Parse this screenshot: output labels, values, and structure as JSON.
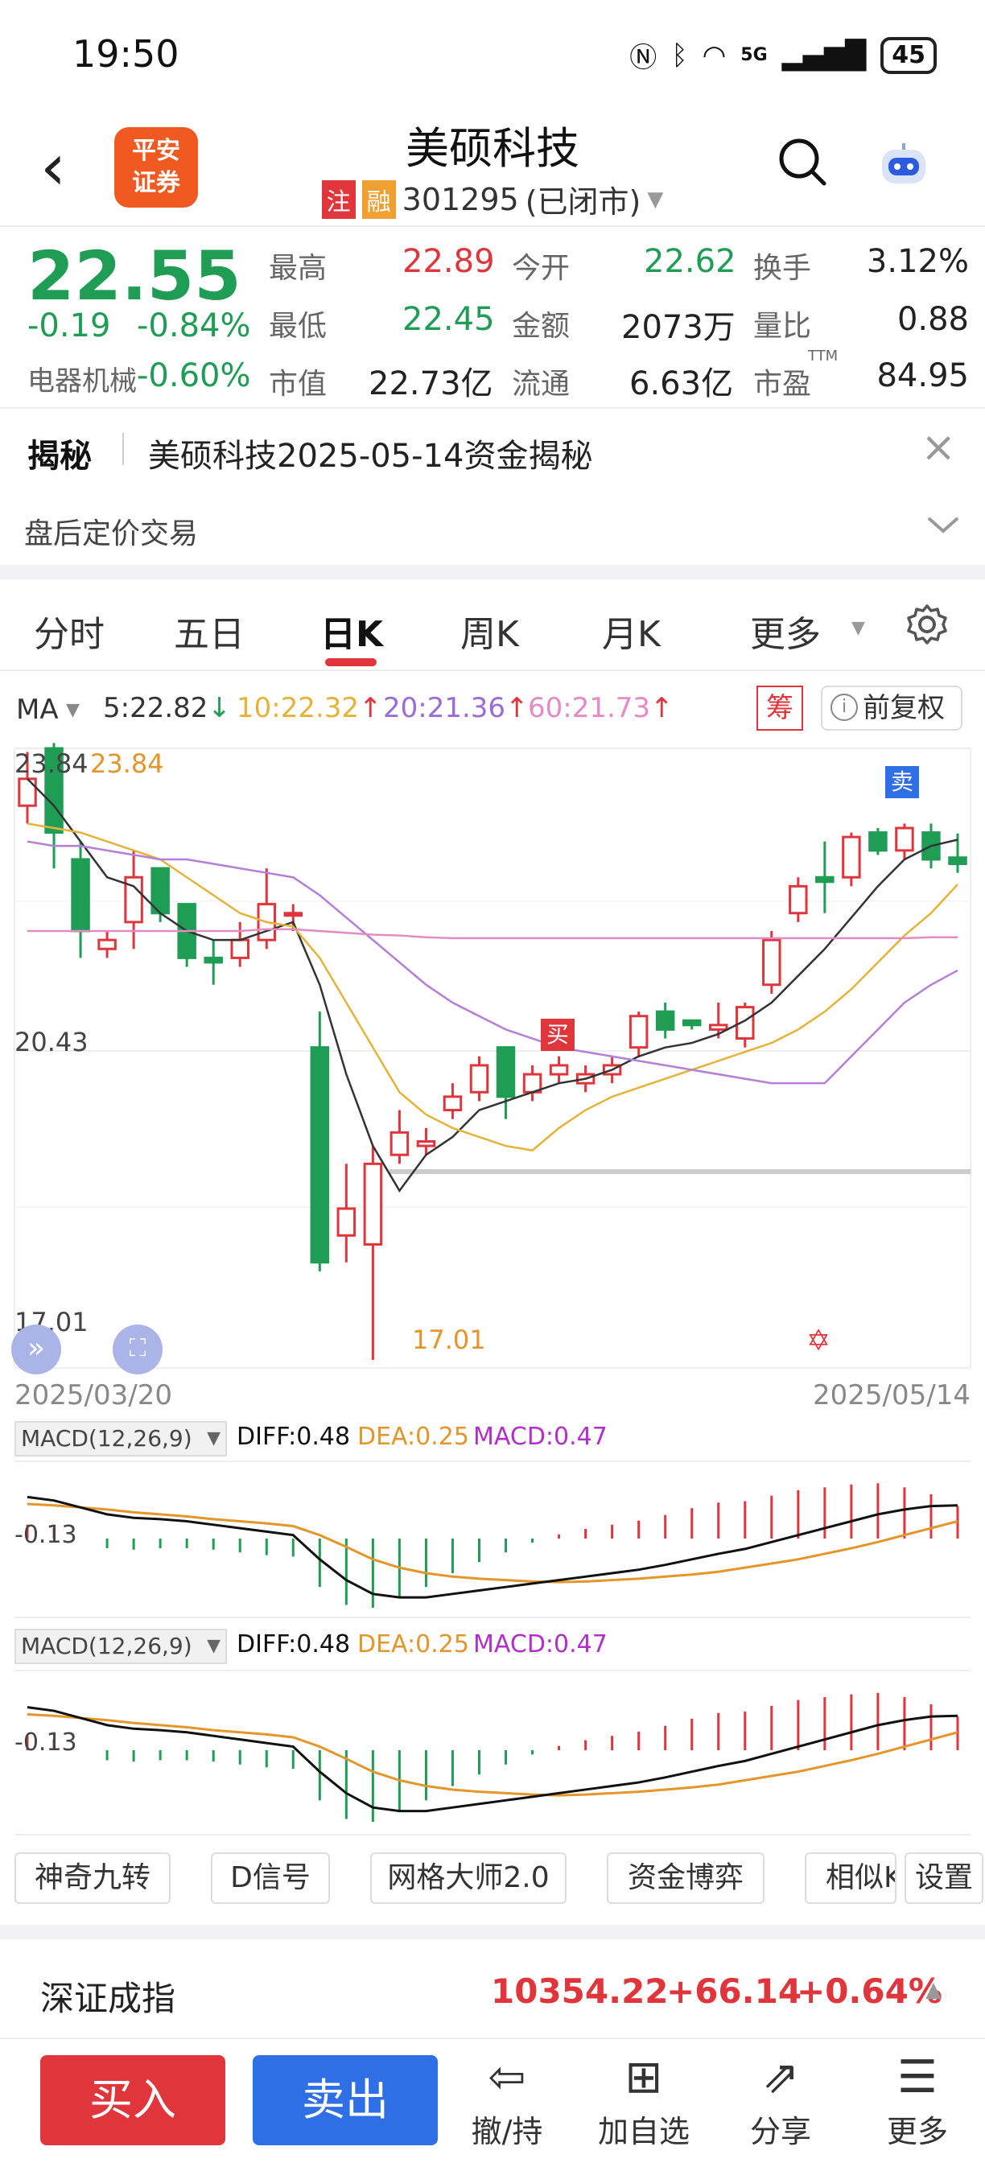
{
  "status": {
    "time": "19:50",
    "network": "5G",
    "battery": "45"
  },
  "header": {
    "title": "美硕科技",
    "logo_line1": "平安",
    "logo_line2": "证券",
    "badge1": "注",
    "badge2": "融",
    "code": "301295",
    "market_status": "(已闭市)"
  },
  "quote": {
    "price": "22.55",
    "change": "-0.19",
    "change_pct": "-0.84%",
    "sector": "电器机械",
    "sector_pct": "-0.60%",
    "high_label": "最高",
    "high": "22.89",
    "open_label": "今开",
    "open": "22.62",
    "turnover_label": "换手",
    "turnover": "3.12%",
    "low_label": "最低",
    "low": "22.45",
    "amount_label": "金额",
    "amount": "2073万",
    "vol_ratio_label": "量比",
    "vol_ratio": "0.88",
    "mcap_label": "市值",
    "mcap": "22.73亿",
    "float_label": "流通",
    "float": "6.63亿",
    "pe_label": "市盈",
    "pe_sup": "TTM",
    "pe": "84.95"
  },
  "notice": {
    "tag": "揭秘",
    "text": "美硕科技2025-05-14资金揭秘",
    "after_hours": "盘后定价交易"
  },
  "tabs": [
    "分时",
    "五日",
    "日K",
    "周K",
    "月K",
    "更多"
  ],
  "active_tab": "日K",
  "ma": {
    "label": "MA",
    "ma5": "5:22.82",
    "ma10": "10:22.32",
    "ma20": "20:21.36",
    "ma60": "60:21.73",
    "chip_label": "筹",
    "adjust_label": "前复权"
  },
  "kline": {
    "y_top_label": "23.84",
    "y_top_label2": "23.84",
    "y_mid_label": "20.43",
    "y_low_label": "17.01",
    "min_marker": "17.01",
    "buy_marker": "买",
    "sell_marker": "卖",
    "date_start": "2025/03/20",
    "date_end": "2025/05/14"
  },
  "macd1": {
    "label": "MACD(12,26,9)",
    "diff": "DIFF:0.48",
    "dea": "DEA:0.25",
    "macd": "MACD:0.47",
    "y_label": "-0.13"
  },
  "macd2": {
    "label": "MACD(12,26,9)",
    "diff": "DIFF:0.48",
    "dea": "DEA:0.25",
    "macd": "MACD:0.47",
    "y_label": "-0.13"
  },
  "tools": [
    "神奇九转",
    "D信号",
    "网格大师2.0",
    "资金博弈",
    "相似K",
    "设置"
  ],
  "index": {
    "name": "深证成指",
    "value": "10354.22",
    "change": "+66.14",
    "pct": "+0.64%"
  },
  "bottom": {
    "buy": "买入",
    "sell": "卖出",
    "hold": "撤/持",
    "watch": "加自选",
    "share": "分享",
    "more": "更多"
  },
  "colors": {
    "up": "#e0353b",
    "down": "#1f9d55",
    "ma5": "#333333",
    "ma10": "#e5b33a",
    "ma20": "#b57fd9",
    "ma60": "#e58bc3",
    "sell_btn": "#2f6fe6"
  },
  "chart_data": [
    {
      "type": "candlestick",
      "title": "",
      "x_range": [
        "2025/03/20",
        "2025/05/14"
      ],
      "ylim": [
        17.01,
        23.84
      ],
      "y_ticks": [
        23.84,
        20.43,
        17.01
      ],
      "ohlc": [
        {
          "o": 23.2,
          "h": 23.8,
          "l": 23.0,
          "c": 23.5
        },
        {
          "o": 23.84,
          "h": 23.9,
          "l": 22.5,
          "c": 22.9
        },
        {
          "o": 22.6,
          "h": 22.8,
          "l": 21.5,
          "c": 21.8
        },
        {
          "o": 21.6,
          "h": 21.8,
          "l": 21.5,
          "c": 21.7
        },
        {
          "o": 21.9,
          "h": 22.7,
          "l": 21.6,
          "c": 22.4
        },
        {
          "o": 22.5,
          "h": 22.5,
          "l": 21.9,
          "c": 22.0
        },
        {
          "o": 22.1,
          "h": 22.1,
          "l": 21.4,
          "c": 21.5
        },
        {
          "o": 21.5,
          "h": 21.7,
          "l": 21.2,
          "c": 21.45
        },
        {
          "o": 21.5,
          "h": 21.9,
          "l": 21.4,
          "c": 21.7
        },
        {
          "o": 21.7,
          "h": 22.5,
          "l": 21.6,
          "c": 22.1
        },
        {
          "o": 22.0,
          "h": 22.1,
          "l": 21.8,
          "c": 22.0
        },
        {
          "o": 20.5,
          "h": 20.9,
          "l": 18.0,
          "c": 18.1
        },
        {
          "o": 18.4,
          "h": 19.2,
          "l": 18.1,
          "c": 18.7
        },
        {
          "o": 18.3,
          "h": 19.4,
          "l": 17.01,
          "c": 19.2
        },
        {
          "o": 19.3,
          "h": 19.8,
          "l": 19.2,
          "c": 19.55
        },
        {
          "o": 19.4,
          "h": 19.6,
          "l": 19.3,
          "c": 19.45
        },
        {
          "o": 19.8,
          "h": 20.1,
          "l": 19.7,
          "c": 19.95
        },
        {
          "o": 20.0,
          "h": 20.4,
          "l": 19.9,
          "c": 20.3
        },
        {
          "o": 20.5,
          "h": 20.5,
          "l": 19.7,
          "c": 19.95
        },
        {
          "o": 20.0,
          "h": 20.3,
          "l": 19.9,
          "c": 20.2
        },
        {
          "o": 20.2,
          "h": 20.4,
          "l": 20.1,
          "c": 20.3
        },
        {
          "o": 20.1,
          "h": 20.3,
          "l": 20.0,
          "c": 20.2
        },
        {
          "o": 20.2,
          "h": 20.4,
          "l": 20.1,
          "c": 20.3
        },
        {
          "o": 20.5,
          "h": 20.9,
          "l": 20.4,
          "c": 20.85
        },
        {
          "o": 20.9,
          "h": 21.0,
          "l": 20.6,
          "c": 20.7
        },
        {
          "o": 20.8,
          "h": 20.8,
          "l": 20.7,
          "c": 20.75
        },
        {
          "o": 20.7,
          "h": 21.0,
          "l": 20.6,
          "c": 20.75
        },
        {
          "o": 20.6,
          "h": 21.0,
          "l": 20.5,
          "c": 20.95
        },
        {
          "o": 21.2,
          "h": 21.8,
          "l": 21.1,
          "c": 21.7
        },
        {
          "o": 22.0,
          "h": 22.4,
          "l": 21.9,
          "c": 22.3
        },
        {
          "o": 22.4,
          "h": 22.8,
          "l": 22.0,
          "c": 22.35
        },
        {
          "o": 22.4,
          "h": 22.9,
          "l": 22.3,
          "c": 22.85
        },
        {
          "o": 22.9,
          "h": 22.95,
          "l": 22.65,
          "c": 22.7
        },
        {
          "o": 22.7,
          "h": 23.0,
          "l": 22.6,
          "c": 22.95
        },
        {
          "o": 22.9,
          "h": 23.0,
          "l": 22.5,
          "c": 22.6
        },
        {
          "o": 22.62,
          "h": 22.89,
          "l": 22.45,
          "c": 22.55
        }
      ],
      "series": [
        {
          "name": "MA5",
          "values": [
            23.5,
            23.2,
            22.8,
            22.4,
            22.3,
            22.0,
            21.8,
            21.7,
            21.7,
            21.8,
            21.9,
            21.2,
            20.2,
            19.4,
            18.9,
            19.3,
            19.5,
            19.8,
            19.9,
            20.0,
            20.1,
            20.15,
            20.25,
            20.4,
            20.5,
            20.55,
            20.65,
            20.8,
            21.0,
            21.3,
            21.6,
            21.95,
            22.3,
            22.6,
            22.75,
            22.82
          ]
        },
        {
          "name": "MA10",
          "values": [
            23.0,
            22.95,
            22.9,
            22.8,
            22.7,
            22.6,
            22.4,
            22.2,
            22.0,
            21.9,
            21.85,
            21.5,
            21.0,
            20.5,
            20.0,
            19.75,
            19.6,
            19.5,
            19.4,
            19.35,
            19.6,
            19.8,
            19.95,
            20.05,
            20.15,
            20.25,
            20.35,
            20.45,
            20.55,
            20.7,
            20.9,
            21.15,
            21.45,
            21.75,
            22.0,
            22.32
          ]
        },
        {
          "name": "MA20",
          "values": [
            22.8,
            22.75,
            22.75,
            22.7,
            22.65,
            22.6,
            22.6,
            22.55,
            22.5,
            22.45,
            22.4,
            22.2,
            21.95,
            21.7,
            21.45,
            21.2,
            21.0,
            20.85,
            20.7,
            20.6,
            20.5,
            20.45,
            20.4,
            20.35,
            20.3,
            20.25,
            20.2,
            20.15,
            20.1,
            20.1,
            20.1,
            20.4,
            20.7,
            21.0,
            21.2,
            21.36
          ]
        },
        {
          "name": "MA60",
          "values": [
            21.8,
            21.8,
            21.8,
            21.8,
            21.8,
            21.8,
            21.8,
            21.8,
            21.8,
            21.82,
            21.82,
            21.8,
            21.78,
            21.76,
            21.75,
            21.73,
            21.72,
            21.72,
            21.72,
            21.72,
            21.72,
            21.72,
            21.72,
            21.72,
            21.72,
            21.72,
            21.72,
            21.72,
            21.72,
            21.72,
            21.72,
            21.72,
            21.72,
            21.72,
            21.73,
            21.73
          ]
        }
      ]
    },
    {
      "type": "bar",
      "title": "MACD(12,26,9)",
      "series": [
        {
          "name": "DIFF",
          "values": [
            0.6,
            0.55,
            0.45,
            0.35,
            0.3,
            0.28,
            0.25,
            0.2,
            0.15,
            0.1,
            0.05,
            -0.3,
            -0.6,
            -0.8,
            -0.85,
            -0.85,
            -0.8,
            -0.75,
            -0.7,
            -0.65,
            -0.6,
            -0.55,
            -0.5,
            -0.45,
            -0.38,
            -0.3,
            -0.22,
            -0.15,
            -0.05,
            0.05,
            0.15,
            0.25,
            0.35,
            0.42,
            0.47,
            0.48
          ]
        },
        {
          "name": "DEA",
          "values": [
            0.5,
            0.48,
            0.45,
            0.42,
            0.38,
            0.35,
            0.32,
            0.28,
            0.25,
            0.22,
            0.18,
            0.05,
            -0.12,
            -0.3,
            -0.42,
            -0.5,
            -0.55,
            -0.58,
            -0.6,
            -0.62,
            -0.63,
            -0.62,
            -0.6,
            -0.58,
            -0.55,
            -0.52,
            -0.48,
            -0.42,
            -0.36,
            -0.3,
            -0.22,
            -0.14,
            -0.05,
            0.05,
            0.15,
            0.25
          ]
        },
        {
          "name": "MACD",
          "values": [
            0.2,
            0.15,
            0.0,
            -0.14,
            -0.16,
            -0.14,
            -0.14,
            -0.16,
            -0.2,
            -0.24,
            -0.26,
            -0.7,
            -0.96,
            -1.0,
            -0.86,
            -0.7,
            -0.5,
            -0.34,
            -0.2,
            -0.06,
            0.06,
            0.14,
            0.2,
            0.26,
            0.34,
            0.44,
            0.52,
            0.54,
            0.62,
            0.7,
            0.74,
            0.78,
            0.8,
            0.74,
            0.64,
            0.47
          ]
        }
      ]
    }
  ]
}
